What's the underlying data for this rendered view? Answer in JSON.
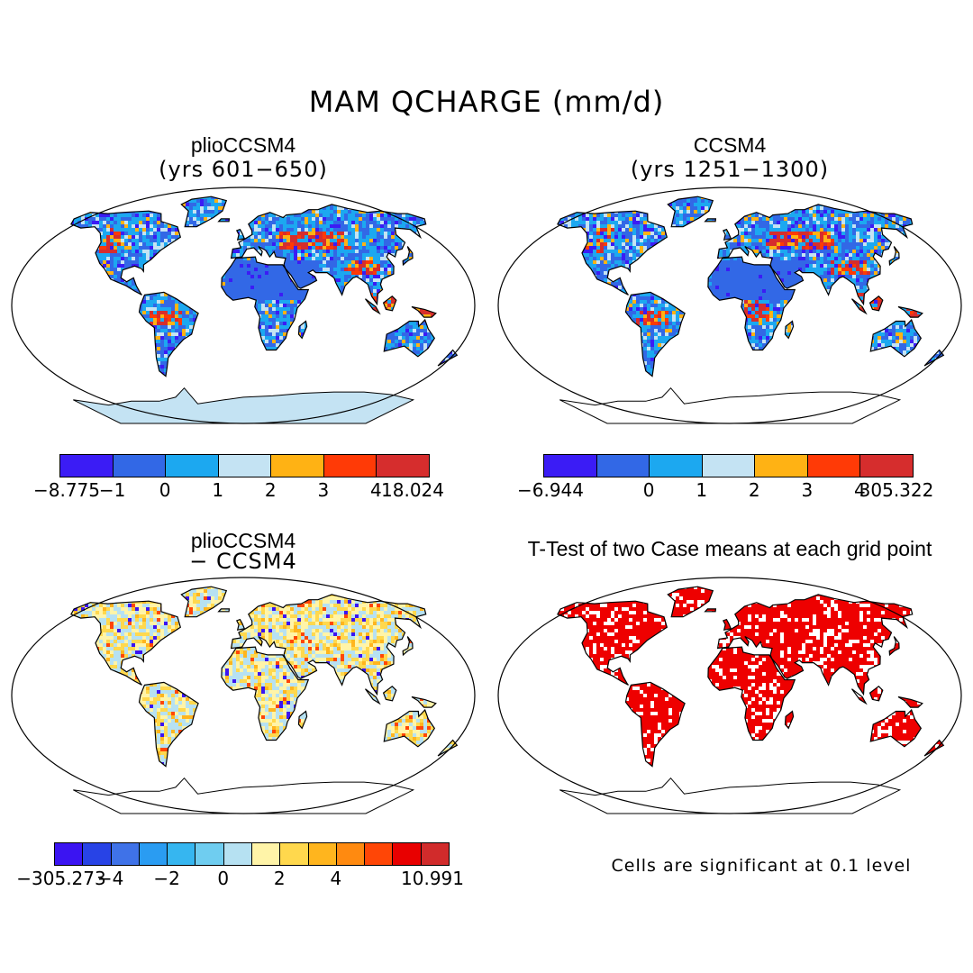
{
  "figure": {
    "title": "MAM QCHARGE (mm/d)"
  },
  "panels": [
    {
      "id": "plio",
      "title": "plioCCSM4",
      "subtitle": "(yrs 601−650)",
      "scheme": "mean",
      "colorbar": {
        "colors": [
          "#3b1cf5",
          "#3268e6",
          "#1ca8f0",
          "#c4e3f3",
          "#ffb214",
          "#ff3a06",
          "#d62d2d"
        ],
        "ticks": [
          "−8.775",
          "−1",
          "0",
          "1",
          "2",
          "3",
          "4",
          "18.024"
        ]
      }
    },
    {
      "id": "ccsm4",
      "title": "CCSM4",
      "subtitle": "(yrs 1251−1300)",
      "scheme": "mean",
      "colorbar": {
        "colors": [
          "#3b1cf5",
          "#3268e6",
          "#1ca8f0",
          "#c4e3f3",
          "#ffb214",
          "#ff3a06",
          "#d62d2d"
        ],
        "ticks": [
          "−6.944",
          "0",
          "1",
          "2",
          "3",
          "4",
          "305.322"
        ]
      }
    },
    {
      "id": "diff",
      "title": "plioCCSM4",
      "subtitle": "− CCSM4",
      "scheme": "diff",
      "colorbar": {
        "colors": [
          "#3b14f2",
          "#2843e6",
          "#3f72e8",
          "#2a9cf2",
          "#36b6f0",
          "#6fcdf0",
          "#b6e1f2",
          "#fff4a8",
          "#ffd84d",
          "#ffb51e",
          "#ff8a10",
          "#ff4606",
          "#e80000",
          "#d12b2b"
        ],
        "ticks": [
          "−305.273",
          "−4",
          "−2",
          "0",
          "2",
          "4",
          "10.991"
        ]
      }
    },
    {
      "id": "ttest",
      "title": "T-Test of two Case means at each grid point",
      "subtitle": "",
      "scheme": "ttest",
      "note": "Cells are significant at 0.1 level"
    }
  ],
  "colors": {
    "significant": "#ee0000",
    "ocean": "#ffffff",
    "coast": "#000000"
  }
}
